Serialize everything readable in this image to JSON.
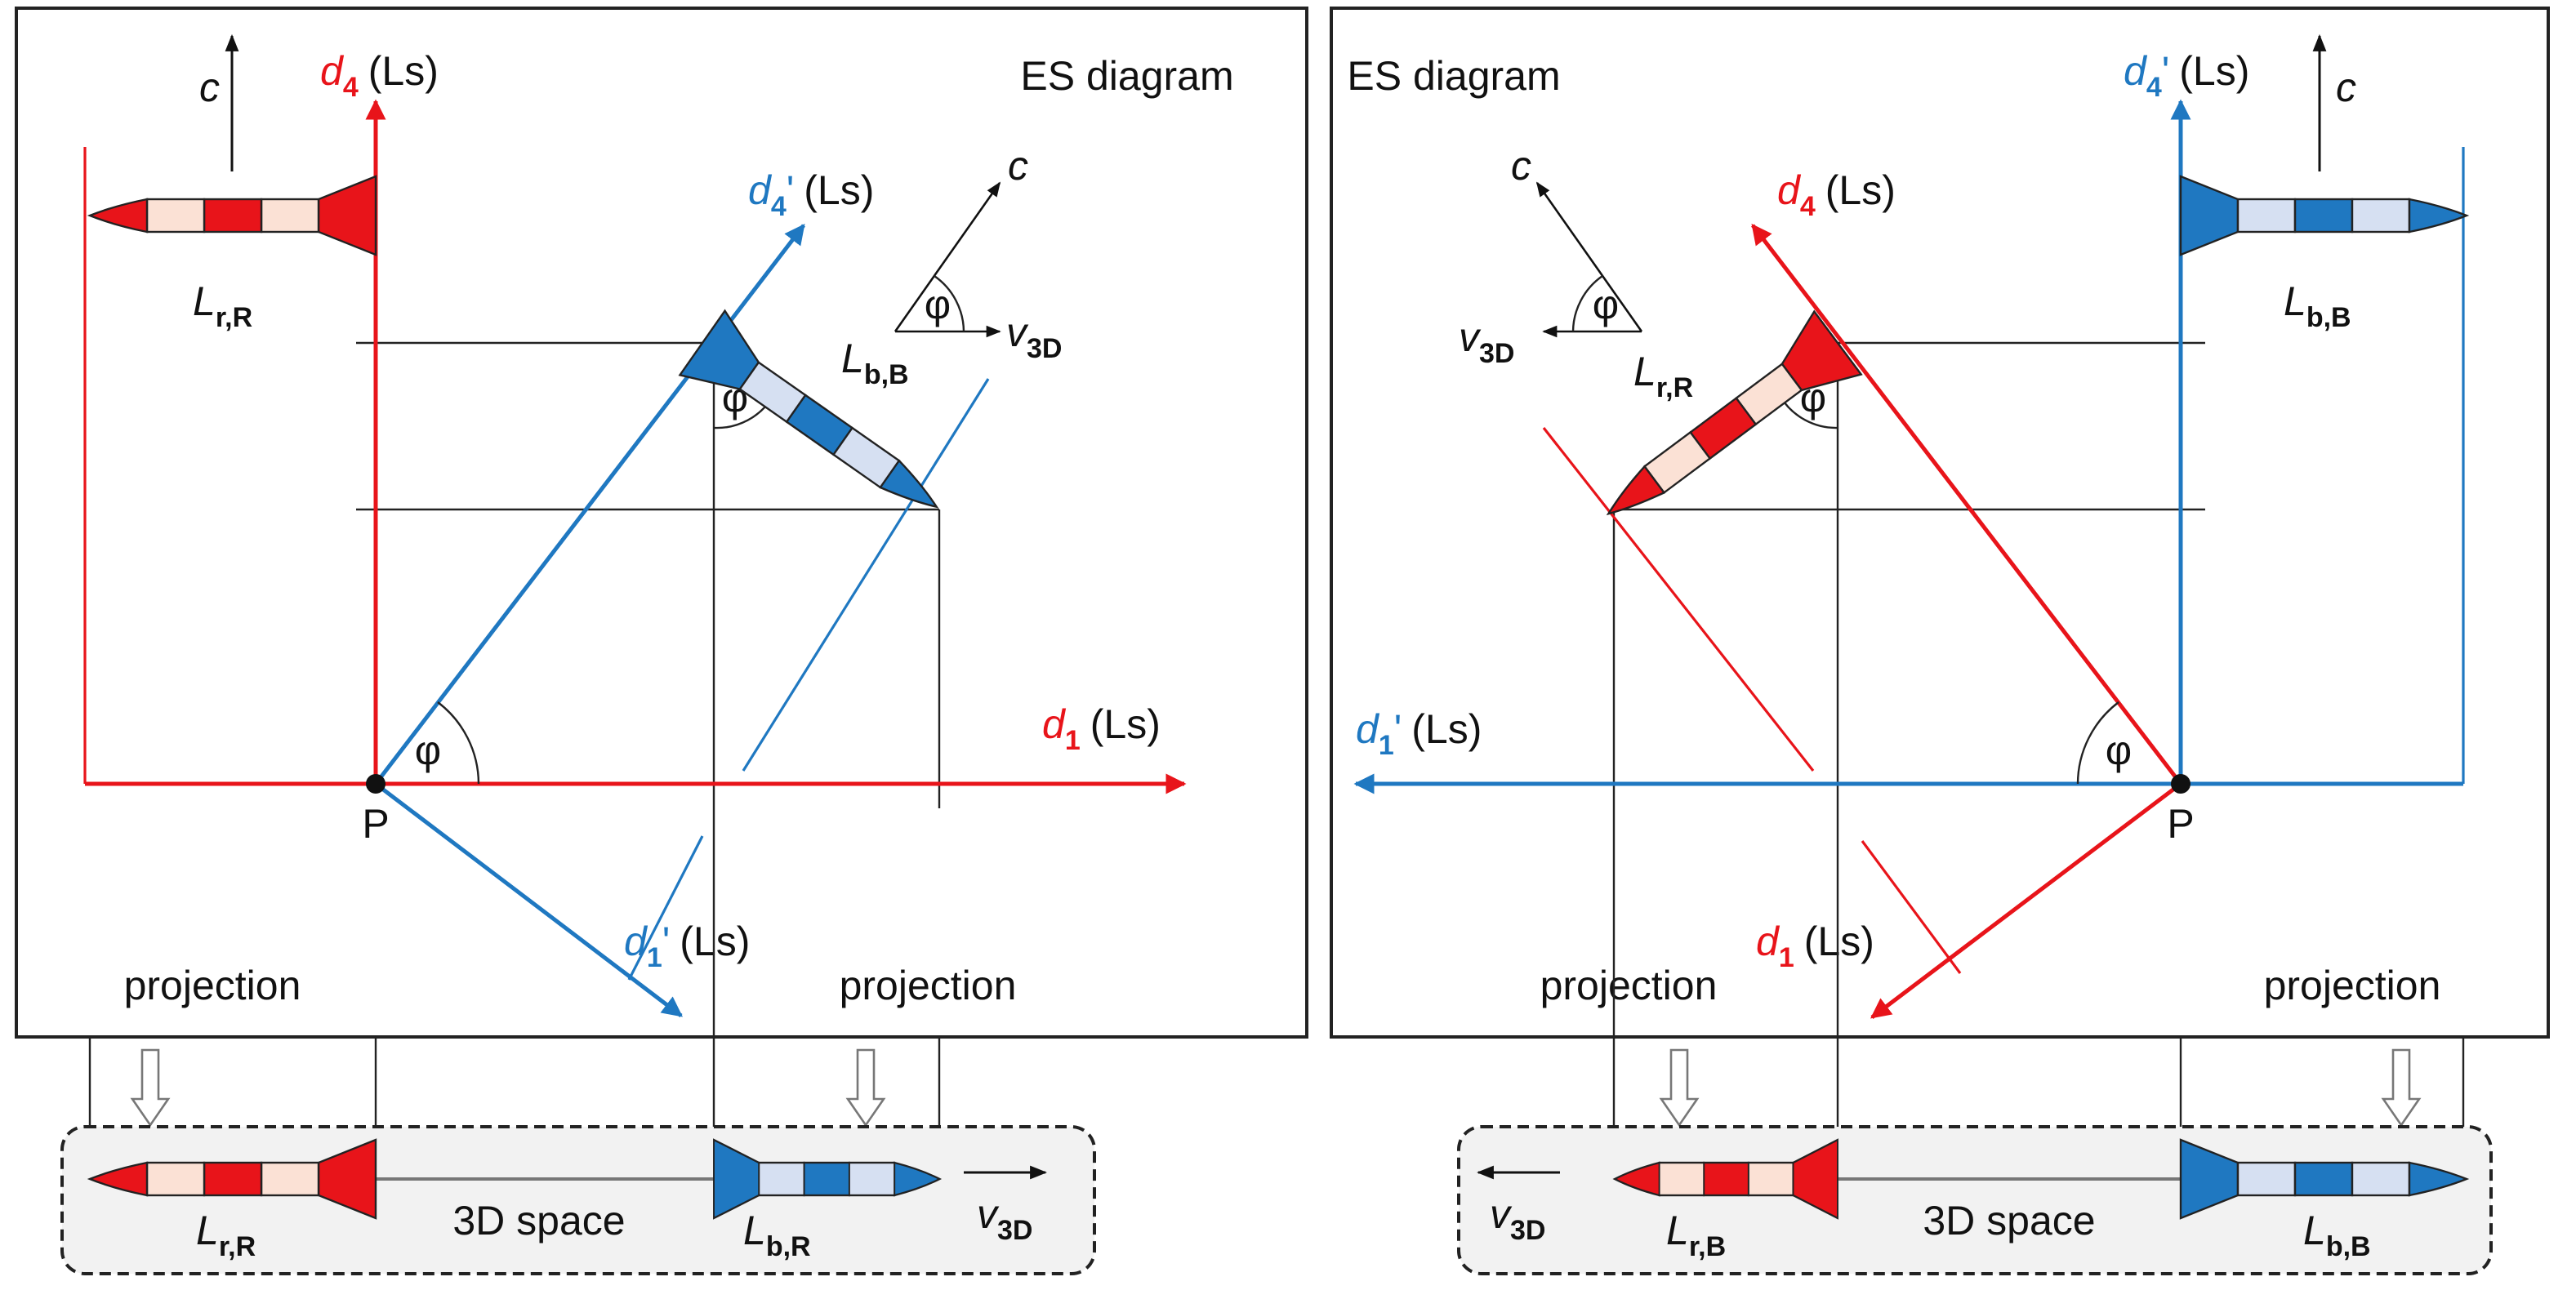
{
  "colors": {
    "red": "#e8141a",
    "blue": "#1f78c1",
    "light_red": "#fbe1d5",
    "light_blue": "#d6e0f2",
    "space_fill": "#f2f2f2"
  },
  "left": {
    "title": "ES diagram",
    "unit": "(Ls)",
    "d4": {
      "var": "d",
      "sub": "4"
    },
    "d1": {
      "var": "d",
      "sub": "1"
    },
    "d4p": {
      "var": "d",
      "sub": "4",
      "prime": "'"
    },
    "d1p": {
      "var": "d",
      "sub": "1",
      "prime": "'"
    },
    "point": "P",
    "angle": "φ",
    "c": "c",
    "v3d": {
      "var": "v",
      "sub": "3D"
    },
    "rocket_top": {
      "var": "L",
      "sub": "r,R"
    },
    "rocket_diag": {
      "var": "L",
      "sub": "b,B"
    },
    "projection": "projection",
    "space": {
      "label": "3D space",
      "rocket_red": {
        "var": "L",
        "sub": "r,R"
      },
      "rocket_blue": {
        "var": "L",
        "sub": "b,R"
      }
    }
  },
  "right": {
    "title": "ES diagram",
    "unit": "(Ls)",
    "d4": {
      "var": "d",
      "sub": "4"
    },
    "d1": {
      "var": "d",
      "sub": "1"
    },
    "d4p": {
      "var": "d",
      "sub": "4",
      "prime": "'"
    },
    "d1p": {
      "var": "d",
      "sub": "1",
      "prime": "'"
    },
    "point": "P",
    "angle": "φ",
    "c": "c",
    "v3d": {
      "var": "v",
      "sub": "3D"
    },
    "rocket_top": {
      "var": "L",
      "sub": "b,B"
    },
    "rocket_diag": {
      "var": "L",
      "sub": "r,R"
    },
    "projection": "projection",
    "space": {
      "label": "3D space",
      "rocket_red": {
        "var": "L",
        "sub": "r,B"
      },
      "rocket_blue": {
        "var": "L",
        "sub": "b,B"
      }
    }
  }
}
